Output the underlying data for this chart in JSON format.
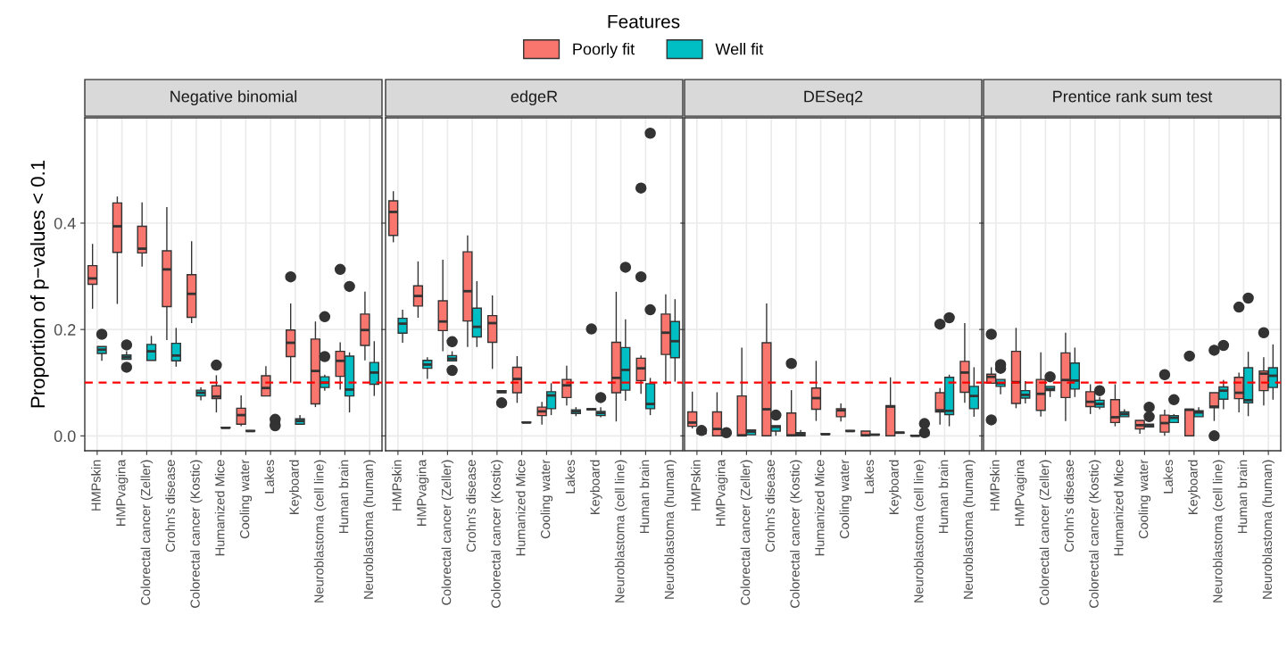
{
  "chart_data": [
    {
      "type": "box",
      "title": "Negative binomial",
      "ylabel": "Proportion of p−values < 0.1",
      "legend_title": "Features",
      "legend": "top",
      "grid": true,
      "categories": [
        "HMPskin",
        "HMPvagina",
        "Colorectal cancer (Zeller)",
        "Crohn's disease",
        "Colorectal cancer (Kostic)",
        "Humanized Mice",
        "Cooling water",
        "Lakes",
        "Keyboard",
        "Neuroblastoma (cell line)",
        "Human brain",
        "Neuroblastoma (human)"
      ],
      "ylim": [
        -0.028,
        0.598
      ],
      "yticks": [
        {
          "value": 0,
          "label": "0.0"
        },
        {
          "value": 0.2,
          "label": "0.2"
        },
        {
          "value": 0.4,
          "label": "0.4"
        }
      ],
      "ref_lines": [
        {
          "axis": "y",
          "value": 0.1,
          "color": "#ff0000",
          "line_style": "dashed"
        }
      ],
      "series": [
        {
          "name": "Poorly fit",
          "color": "#f8766d",
          "boxes": [
            {
              "low": 0.239,
              "q1": 0.285,
              "median": 0.296,
              "q3": 0.32,
              "high": 0.361
            },
            {
              "low": 0.248,
              "q1": 0.345,
              "median": 0.394,
              "q3": 0.438,
              "high": 0.45
            },
            {
              "low": 0.318,
              "q1": 0.344,
              "median": 0.352,
              "q3": 0.394,
              "high": 0.439
            },
            {
              "low": 0.18,
              "q1": 0.243,
              "median": 0.313,
              "q3": 0.348,
              "high": 0.43
            },
            {
              "low": 0.212,
              "q1": 0.223,
              "median": 0.267,
              "q3": 0.303,
              "high": 0.366
            },
            {
              "low": 0.044,
              "q1": 0.07,
              "median": 0.074,
              "q3": 0.094,
              "high": 0.114,
              "outliers": [
                0.133
              ]
            },
            {
              "low": 0.018,
              "q1": 0.022,
              "median": 0.039,
              "q3": 0.052,
              "high": 0.076
            },
            {
              "low": 0.075,
              "q1": 0.075,
              "median": 0.09,
              "q3": 0.113,
              "high": 0.131
            },
            {
              "low": 0.1,
              "q1": 0.149,
              "median": 0.175,
              "q3": 0.199,
              "high": 0.249,
              "outliers": [
                0.299
              ]
            },
            {
              "low": 0.054,
              "q1": 0.06,
              "median": 0.122,
              "q3": 0.182,
              "high": 0.215
            },
            {
              "low": 0.087,
              "q1": 0.112,
              "median": 0.141,
              "q3": 0.159,
              "high": 0.176,
              "outliers": [
                0.313
              ]
            },
            {
              "low": 0.142,
              "q1": 0.17,
              "median": 0.199,
              "q3": 0.229,
              "high": 0.271
            }
          ]
        },
        {
          "name": "Well fit",
          "color": "#00bfc4",
          "boxes": [
            {
              "low": 0.141,
              "q1": 0.155,
              "median": 0.162,
              "q3": 0.168,
              "high": 0.168,
              "outliers": [
                0.191
              ]
            },
            {
              "low": 0.144,
              "q1": 0.144,
              "median": 0.148,
              "q3": 0.152,
              "high": 0.159,
              "outliers": [
                0.171,
                0.129
              ]
            },
            {
              "low": 0.142,
              "q1": 0.142,
              "median": 0.159,
              "q3": 0.172,
              "high": 0.188
            },
            {
              "low": 0.13,
              "q1": 0.141,
              "median": 0.151,
              "q3": 0.174,
              "high": 0.203
            },
            {
              "low": 0.067,
              "q1": 0.075,
              "median": 0.081,
              "q3": 0.086,
              "high": 0.091
            },
            {
              "low": 0.015,
              "q1": 0.015,
              "median": 0.015,
              "q3": 0.016,
              "high": 0.016
            },
            {
              "low": 0.009,
              "q1": 0.009,
              "median": 0.009,
              "q3": 0.01,
              "high": 0.01
            },
            {
              "low": 0.023,
              "q1": 0.023,
              "median": 0.025,
              "q3": 0.027,
              "high": 0.027,
              "outliers": [
                0.031,
                0.019
              ]
            },
            {
              "low": 0.022,
              "q1": 0.022,
              "median": 0.028,
              "q3": 0.032,
              "high": 0.039
            },
            {
              "low": 0.085,
              "q1": 0.091,
              "median": 0.1,
              "q3": 0.111,
              "high": 0.115,
              "outliers": [
                0.224,
                0.149
              ]
            },
            {
              "low": 0.044,
              "q1": 0.075,
              "median": 0.087,
              "q3": 0.15,
              "high": 0.157,
              "outliers": [
                0.281
              ]
            },
            {
              "low": 0.075,
              "q1": 0.097,
              "median": 0.119,
              "q3": 0.138,
              "high": 0.178
            }
          ]
        }
      ]
    },
    {
      "type": "box",
      "title": "edgeR",
      "grid": true,
      "tick_labels": "x",
      "categories": [
        "HMPskin",
        "HMPvagina",
        "Colorectal cancer (Zeller)",
        "Crohn's disease",
        "Colorectal cancer (Kostic)",
        "Humanized Mice",
        "Cooling water",
        "Lakes",
        "Keyboard",
        "Neuroblastoma (cell line)",
        "Human brain",
        "Neuroblastoma (human)"
      ],
      "ylim": [
        -0.028,
        0.598
      ],
      "yticks": [
        {
          "value": 0,
          "label": null
        },
        {
          "value": 0.2,
          "label": null
        },
        {
          "value": 0.4,
          "label": null
        }
      ],
      "ref_lines": [
        {
          "axis": "y",
          "value": 0.1,
          "color": "#ff0000",
          "line_style": "dashed"
        }
      ],
      "series": [
        {
          "color": "#f8766d",
          "boxes": [
            {
              "low": 0.364,
              "q1": 0.377,
              "median": 0.421,
              "q3": 0.442,
              "high": 0.46
            },
            {
              "low": 0.222,
              "q1": 0.244,
              "median": 0.263,
              "q3": 0.282,
              "high": 0.328
            },
            {
              "low": 0.159,
              "q1": 0.198,
              "median": 0.215,
              "q3": 0.254,
              "high": 0.331
            },
            {
              "low": 0.167,
              "q1": 0.216,
              "median": 0.272,
              "q3": 0.346,
              "high": 0.377
            },
            {
              "low": 0.126,
              "q1": 0.176,
              "median": 0.212,
              "q3": 0.226,
              "high": 0.264
            },
            {
              "low": 0.062,
              "q1": 0.081,
              "median": 0.107,
              "q3": 0.129,
              "high": 0.15
            },
            {
              "low": 0.021,
              "q1": 0.038,
              "median": 0.046,
              "q3": 0.054,
              "high": 0.064
            },
            {
              "low": 0.057,
              "q1": 0.072,
              "median": 0.095,
              "q3": 0.106,
              "high": 0.132
            },
            {
              "low": 0.049,
              "q1": 0.049,
              "median": 0.05,
              "q3": 0.051,
              "high": 0.051,
              "outliers": [
                0.201
              ]
            },
            {
              "low": 0.027,
              "q1": 0.081,
              "median": 0.109,
              "q3": 0.176,
              "high": 0.271
            },
            {
              "low": 0.079,
              "q1": 0.104,
              "median": 0.127,
              "q3": 0.146,
              "high": 0.151,
              "outliers": [
                0.466,
                0.299
              ]
            },
            {
              "low": 0.097,
              "q1": 0.153,
              "median": 0.194,
              "q3": 0.229,
              "high": 0.266
            }
          ]
        },
        {
          "color": "#00bfc4",
          "boxes": [
            {
              "low": 0.175,
              "q1": 0.193,
              "median": 0.211,
              "q3": 0.221,
              "high": 0.237
            },
            {
              "low": 0.107,
              "q1": 0.127,
              "median": 0.134,
              "q3": 0.142,
              "high": 0.148
            },
            {
              "low": 0.141,
              "q1": 0.141,
              "median": 0.145,
              "q3": 0.151,
              "high": 0.159,
              "outliers": [
                0.177,
                0.123
              ]
            },
            {
              "low": 0.167,
              "q1": 0.186,
              "median": 0.205,
              "q3": 0.24,
              "high": 0.291
            },
            {
              "low": 0.081,
              "q1": 0.081,
              "median": 0.083,
              "q3": 0.085,
              "high": 0.085,
              "outliers": [
                0.062
              ]
            },
            {
              "low": 0.025,
              "q1": 0.025,
              "median": 0.025,
              "q3": 0.026,
              "high": 0.026
            },
            {
              "low": 0.039,
              "q1": 0.051,
              "median": 0.076,
              "q3": 0.083,
              "high": 0.099
            },
            {
              "low": 0.037,
              "q1": 0.042,
              "median": 0.046,
              "q3": 0.049,
              "high": 0.054
            },
            {
              "low": 0.035,
              "q1": 0.038,
              "median": 0.043,
              "q3": 0.046,
              "high": 0.054,
              "outliers": [
                0.072
              ]
            },
            {
              "low": 0.066,
              "q1": 0.086,
              "median": 0.124,
              "q3": 0.166,
              "high": 0.219,
              "outliers": [
                0.317
              ]
            },
            {
              "low": 0.039,
              "q1": 0.051,
              "median": 0.06,
              "q3": 0.098,
              "high": 0.109,
              "outliers": [
                0.569,
                0.237
              ]
            },
            {
              "low": 0.102,
              "q1": 0.147,
              "median": 0.178,
              "q3": 0.215,
              "high": 0.257
            }
          ]
        }
      ]
    },
    {
      "type": "box",
      "title": "DESeq2",
      "grid": true,
      "tick_labels": "x",
      "categories": [
        "HMPskin",
        "HMPvagina",
        "Colorectal cancer (Zeller)",
        "Crohn's disease",
        "Colorectal cancer (Kostic)",
        "Humanized Mice",
        "Cooling water",
        "Lakes",
        "Keyboard",
        "Neuroblastoma (cell line)",
        "Human brain",
        "Neuroblastoma (human)"
      ],
      "ylim": [
        -0.028,
        0.598
      ],
      "yticks": [
        {
          "value": 0,
          "label": null
        },
        {
          "value": 0.2,
          "label": null
        },
        {
          "value": 0.4,
          "label": null
        }
      ],
      "ref_lines": [
        {
          "axis": "y",
          "value": 0.1,
          "color": "#ff0000",
          "line_style": "dashed"
        }
      ],
      "series": [
        {
          "color": "#f8766d",
          "boxes": [
            {
              "low": 0.014,
              "q1": 0.018,
              "median": 0.025,
              "q3": 0.045,
              "high": 0.083
            },
            {
              "low": 0,
              "q1": 0,
              "median": 0.013,
              "q3": 0.045,
              "high": 0.082
            },
            {
              "low": 0,
              "q1": 0,
              "median": 0.001,
              "q3": 0.075,
              "high": 0.166
            },
            {
              "low": 0,
              "q1": 0,
              "median": 0.05,
              "q3": 0.175,
              "high": 0.249
            },
            {
              "low": 0,
              "q1": 0,
              "median": 0.001,
              "q3": 0.043,
              "high": 0.086,
              "outliers": [
                0.136
              ]
            },
            {
              "low": 0.028,
              "q1": 0.05,
              "median": 0.071,
              "q3": 0.09,
              "high": 0.141
            },
            {
              "low": 0.027,
              "q1": 0.036,
              "median": 0.048,
              "q3": 0.051,
              "high": 0.061
            },
            {
              "low": 0,
              "q1": 0,
              "median": 0.001,
              "q3": 0.009,
              "high": 0.009
            },
            {
              "low": 0,
              "q1": 0,
              "median": 0.055,
              "q3": 0.057,
              "high": 0.11
            },
            {
              "low": 0,
              "q1": 0,
              "median": 0,
              "q3": 0.001,
              "high": 0.001
            },
            {
              "low": 0.021,
              "q1": 0.045,
              "median": 0.048,
              "q3": 0.081,
              "high": 0.09,
              "outliers": [
                0.21
              ]
            },
            {
              "low": 0.062,
              "q1": 0.082,
              "median": 0.119,
              "q3": 0.14,
              "high": 0.212
            }
          ]
        },
        {
          "color": "#00bfc4",
          "boxes": [
            {
              "low": 0.004,
              "q1": 0.004,
              "median": 0.005,
              "q3": 0.006,
              "high": 0.006,
              "outliers": [
                0.01
              ]
            },
            {
              "low": 0.003,
              "q1": 0.003,
              "median": 0.003,
              "q3": 0.004,
              "high": 0.004,
              "outliers": [
                0.006
              ]
            },
            {
              "low": 0.002,
              "q1": 0.002,
              "median": 0.008,
              "q3": 0.011,
              "high": 0.011
            },
            {
              "low": 0,
              "q1": 0.009,
              "median": 0.017,
              "q3": 0.019,
              "high": 0.019,
              "outliers": [
                0.039
              ]
            },
            {
              "low": 0,
              "q1": 0,
              "median": 0.003,
              "q3": 0.006,
              "high": 0.011
            },
            {
              "low": 0.003,
              "q1": 0.003,
              "median": 0.003,
              "q3": 0.004,
              "high": 0.004
            },
            {
              "low": 0.009,
              "q1": 0.009,
              "median": 0.009,
              "q3": 0.01,
              "high": 0.01
            },
            {
              "low": 0.002,
              "q1": 0.002,
              "median": 0.002,
              "q3": 0.003,
              "high": 0.003
            },
            {
              "low": 0.005,
              "q1": 0.005,
              "median": 0.006,
              "q3": 0.007,
              "high": 0.007
            },
            {
              "low": 0.001,
              "q1": 0.001,
              "median": 0.002,
              "q3": 0.003,
              "high": 0.003,
              "outliers": [
                0.023,
                0.006
              ]
            },
            {
              "low": 0.018,
              "q1": 0.04,
              "median": 0.047,
              "q3": 0.11,
              "high": 0.115,
              "outliers": [
                0.222
              ]
            },
            {
              "low": 0.036,
              "q1": 0.051,
              "median": 0.075,
              "q3": 0.093,
              "high": 0.129
            }
          ]
        }
      ]
    },
    {
      "type": "box",
      "title": "Prentice rank sum test",
      "grid": true,
      "tick_labels": "x",
      "categories": [
        "HMPskin",
        "HMPvagina",
        "Colorectal cancer (Zeller)",
        "Crohn's disease",
        "Colorectal cancer (Kostic)",
        "Humanized Mice",
        "Cooling water",
        "Lakes",
        "Keyboard",
        "Neuroblastoma (cell line)",
        "Human brain",
        "Neuroblastoma (human)"
      ],
      "ylim": [
        -0.028,
        0.598
      ],
      "yticks": [
        {
          "value": 0,
          "label": null
        },
        {
          "value": 0.2,
          "label": null
        },
        {
          "value": 0.4,
          "label": null
        }
      ],
      "ref_lines": [
        {
          "axis": "y",
          "value": 0.1,
          "color": "#ff0000",
          "line_style": "dashed"
        }
      ],
      "series": [
        {
          "color": "#f8766d",
          "boxes": [
            {
              "low": 0.099,
              "q1": 0.099,
              "median": 0.111,
              "q3": 0.116,
              "high": 0.129,
              "outliers": [
                0.191,
                0.03
              ]
            },
            {
              "low": 0.052,
              "q1": 0.061,
              "median": 0.101,
              "q3": 0.159,
              "high": 0.203
            },
            {
              "low": 0.036,
              "q1": 0.048,
              "median": 0.079,
              "q3": 0.106,
              "high": 0.157
            },
            {
              "low": 0.028,
              "q1": 0.072,
              "median": 0.105,
              "q3": 0.156,
              "high": 0.194
            },
            {
              "low": 0.041,
              "q1": 0.055,
              "median": 0.064,
              "q3": 0.083,
              "high": 0.097
            },
            {
              "low": 0.018,
              "q1": 0.025,
              "median": 0.035,
              "q3": 0.068,
              "high": 0.097
            },
            {
              "low": 0.004,
              "q1": 0.013,
              "median": 0.02,
              "q3": 0.029,
              "high": 0.029
            },
            {
              "low": 0,
              "q1": 0.007,
              "median": 0.024,
              "q3": 0.039,
              "high": 0.049,
              "outliers": [
                0.115
              ]
            },
            {
              "low": 0,
              "q1": 0,
              "median": 0.049,
              "q3": 0.05,
              "high": 0.05,
              "outliers": [
                0.15
              ]
            },
            {
              "low": 0.028,
              "q1": 0.053,
              "median": 0.055,
              "q3": 0.081,
              "high": 0.081,
              "outliers": [
                0.161,
                0
              ]
            },
            {
              "low": 0.044,
              "q1": 0.07,
              "median": 0.081,
              "q3": 0.11,
              "high": 0.119,
              "outliers": [
                0.242
              ]
            },
            {
              "low": 0.057,
              "q1": 0.085,
              "median": 0.117,
              "q3": 0.122,
              "high": 0.148,
              "outliers": [
                0.194
              ]
            }
          ]
        },
        {
          "color": "#00bfc4",
          "boxes": [
            {
              "low": 0.078,
              "q1": 0.093,
              "median": 0.099,
              "q3": 0.106,
              "high": 0.106,
              "outliers": [
                0.134,
                0.127
              ]
            },
            {
              "low": 0.061,
              "q1": 0.071,
              "median": 0.077,
              "q3": 0.085,
              "high": 0.103
            },
            {
              "low": 0.073,
              "q1": 0.085,
              "median": 0.088,
              "q3": 0.093,
              "high": 0.093,
              "outliers": [
                0.111
              ]
            },
            {
              "low": 0.073,
              "q1": 0.088,
              "median": 0.104,
              "q3": 0.137,
              "high": 0.166
            },
            {
              "low": 0.05,
              "q1": 0.054,
              "median": 0.06,
              "q3": 0.067,
              "high": 0.073,
              "outliers": [
                0.085
              ]
            },
            {
              "low": 0.036,
              "q1": 0.036,
              "median": 0.041,
              "q3": 0.045,
              "high": 0.05
            },
            {
              "low": 0.017,
              "q1": 0.017,
              "median": 0.02,
              "q3": 0.022,
              "high": 0.022,
              "outliers": [
                0.054,
                0.036
              ]
            },
            {
              "low": 0.025,
              "q1": 0.025,
              "median": 0.034,
              "q3": 0.038,
              "high": 0.041,
              "outliers": [
                0.068
              ]
            },
            {
              "low": 0.036,
              "q1": 0.036,
              "median": 0.044,
              "q3": 0.047,
              "high": 0.054
            },
            {
              "low": 0.05,
              "q1": 0.069,
              "median": 0.085,
              "q3": 0.092,
              "high": 0.105,
              "outliers": [
                0.17
              ]
            },
            {
              "low": 0.037,
              "q1": 0.062,
              "median": 0.067,
              "q3": 0.128,
              "high": 0.158,
              "outliers": [
                0.259
              ]
            },
            {
              "low": 0.068,
              "q1": 0.091,
              "median": 0.113,
              "q3": 0.128,
              "high": 0.172
            }
          ]
        }
      ]
    }
  ]
}
